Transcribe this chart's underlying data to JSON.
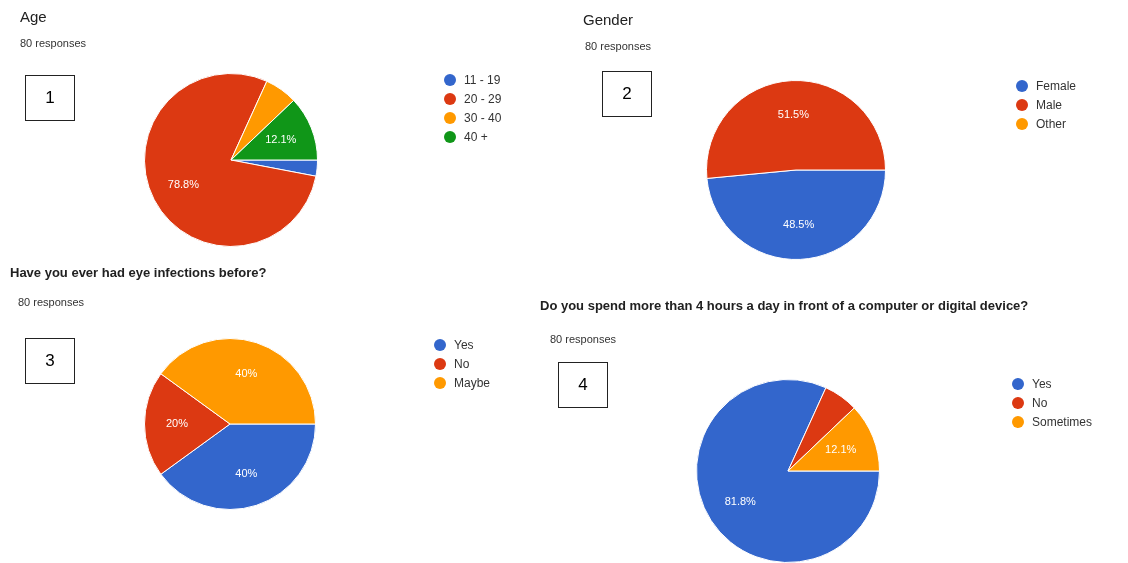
{
  "chart_data": [
    {
      "type": "pie",
      "title": "Age",
      "subtitle": "80 responses",
      "annotations": [
        "1"
      ],
      "categories": [
        "11 - 19",
        "20 - 29",
        "30 - 40",
        "40 +"
      ],
      "values": [
        3.0,
        78.8,
        6.1,
        12.1
      ],
      "value_labels": [
        null,
        "78.8%",
        null,
        "12.1%"
      ],
      "colors": [
        "#3366cc",
        "#dc3912",
        "#ff9900",
        "#109618"
      ],
      "legend": "right"
    },
    {
      "type": "pie",
      "title": "Gender",
      "subtitle": "80 responses",
      "annotations": [
        "2"
      ],
      "categories": [
        "Female",
        "Male",
        "Other"
      ],
      "values": [
        48.5,
        51.5,
        0
      ],
      "value_labels": [
        "48.5%",
        "51.5%",
        null
      ],
      "colors": [
        "#3366cc",
        "#dc3912",
        "#ff9900"
      ],
      "legend": "right"
    },
    {
      "type": "pie",
      "title": "Have you ever had eye infections before?",
      "subtitle": "80 responses",
      "annotations": [
        "3"
      ],
      "categories": [
        "Yes",
        "No",
        "Maybe"
      ],
      "values": [
        40,
        20,
        40
      ],
      "value_labels": [
        "40%",
        "20%",
        "40%"
      ],
      "colors": [
        "#3366cc",
        "#dc3912",
        "#ff9900"
      ],
      "legend": "right"
    },
    {
      "type": "pie",
      "title": "Do you spend more than 4 hours a day in front of a computer or digital device?",
      "subtitle": "80 responses",
      "annotations": [
        "4"
      ],
      "categories": [
        "Yes",
        "No",
        "Sometimes"
      ],
      "values": [
        81.8,
        6.1,
        12.1
      ],
      "value_labels": [
        "81.8%",
        null,
        "12.1%"
      ],
      "colors": [
        "#3366cc",
        "#dc3912",
        "#ff9900"
      ],
      "legend": "right"
    }
  ]
}
